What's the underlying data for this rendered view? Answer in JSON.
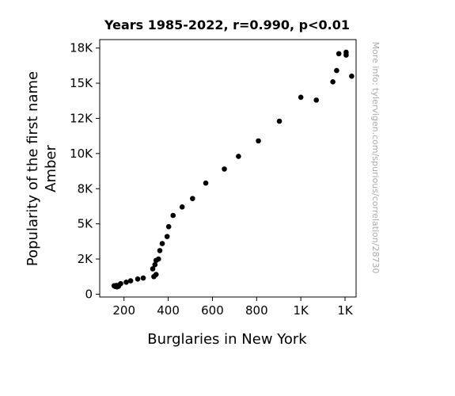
{
  "chart_data": {
    "type": "scatter",
    "title": "Years 1985-2022, r=0.990, p<0.01",
    "xlabel": "Burglaries in New York",
    "ylabel": [
      "Popularity of the first name",
      "Amber"
    ],
    "watermark": "More info: tylervigen.com/spurious/correlation/28730",
    "xlim": [
      90,
      1250
    ],
    "ylim": [
      -200,
      18100
    ],
    "x_ticks": [
      {
        "value": 200,
        "label": "200"
      },
      {
        "value": 400,
        "label": "400"
      },
      {
        "value": 600,
        "label": "600"
      },
      {
        "value": 800,
        "label": "800"
      },
      {
        "value": 1000,
        "label": "1K"
      },
      {
        "value": 1200,
        "label": "1K"
      }
    ],
    "y_ticks": [
      {
        "value": 0,
        "label": "0"
      },
      {
        "value": 2500,
        "label": "2K"
      },
      {
        "value": 5000,
        "label": "5K"
      },
      {
        "value": 7500,
        "label": "8K"
      },
      {
        "value": 10000,
        "label": "10K"
      },
      {
        "value": 12500,
        "label": "12K"
      },
      {
        "value": 15000,
        "label": "15K"
      },
      {
        "value": 17500,
        "label": "18K"
      }
    ],
    "grid": false,
    "marker_color": "#000000",
    "points": [
      {
        "x": 1230,
        "y": 15500
      },
      {
        "x": 1205,
        "y": 17000
      },
      {
        "x": 1205,
        "y": 17200
      },
      {
        "x": 1172,
        "y": 17100
      },
      {
        "x": 1162,
        "y": 15900
      },
      {
        "x": 1145,
        "y": 15100
      },
      {
        "x": 1070,
        "y": 13800
      },
      {
        "x": 1000,
        "y": 14000
      },
      {
        "x": 903,
        "y": 12300
      },
      {
        "x": 808,
        "y": 10900
      },
      {
        "x": 718,
        "y": 9800
      },
      {
        "x": 654,
        "y": 8900
      },
      {
        "x": 570,
        "y": 7900
      },
      {
        "x": 510,
        "y": 6800
      },
      {
        "x": 463,
        "y": 6200
      },
      {
        "x": 422,
        "y": 5600
      },
      {
        "x": 402,
        "y": 4800
      },
      {
        "x": 395,
        "y": 4100
      },
      {
        "x": 373,
        "y": 3600
      },
      {
        "x": 362,
        "y": 3100
      },
      {
        "x": 356,
        "y": 2500
      },
      {
        "x": 345,
        "y": 2400
      },
      {
        "x": 340,
        "y": 2100
      },
      {
        "x": 330,
        "y": 1800
      },
      {
        "x": 345,
        "y": 1400
      },
      {
        "x": 335,
        "y": 1250
      },
      {
        "x": 287,
        "y": 1150
      },
      {
        "x": 262,
        "y": 1080
      },
      {
        "x": 230,
        "y": 950
      },
      {
        "x": 210,
        "y": 850
      },
      {
        "x": 185,
        "y": 750
      },
      {
        "x": 178,
        "y": 650
      },
      {
        "x": 172,
        "y": 600
      },
      {
        "x": 165,
        "y": 620
      },
      {
        "x": 155,
        "y": 600
      },
      {
        "x": 160,
        "y": 550
      },
      {
        "x": 168,
        "y": 520
      },
      {
        "x": 175,
        "y": 560
      }
    ]
  }
}
